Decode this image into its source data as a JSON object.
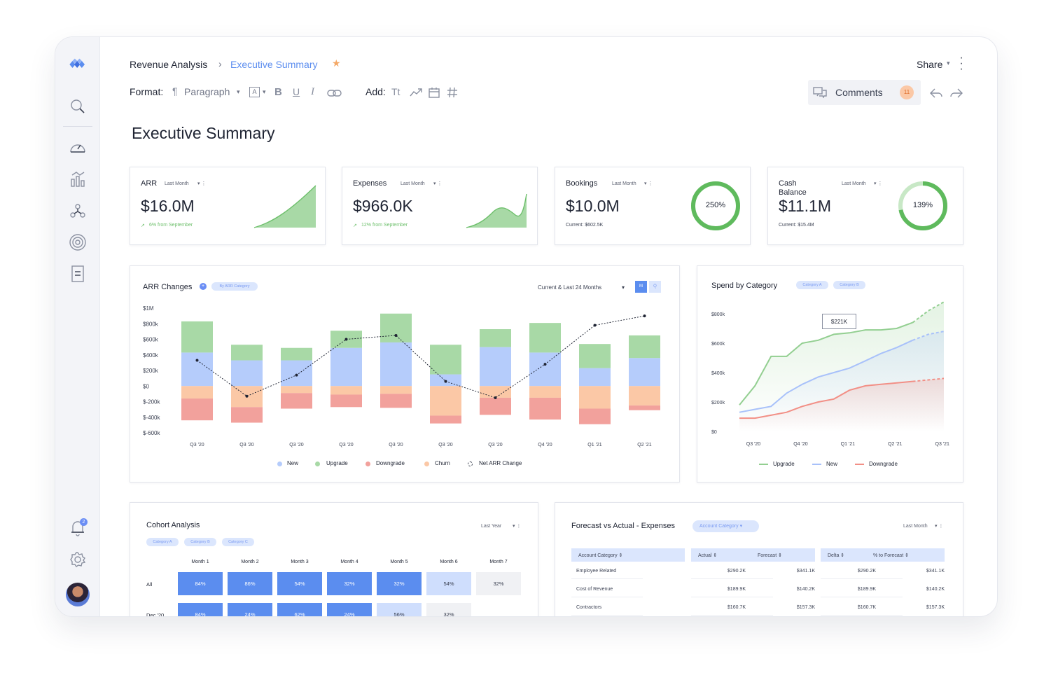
{
  "breadcrumb": {
    "parent": "Revenue Analysis",
    "current": "Executive Summary"
  },
  "header": {
    "share_label": "Share",
    "comments_label": "Comments",
    "comments_count": "11"
  },
  "toolbar": {
    "format_label": "Format:",
    "paragraph_label": "Paragraph",
    "add_label": "Add:",
    "text_tool": "Tt",
    "font_icon_label": "A",
    "bold": "B",
    "underline": "U",
    "italic": "I"
  },
  "page": {
    "title": "Executive Summary"
  },
  "kpis": [
    {
      "title": "ARR",
      "period": "Last Month",
      "value": "$16.0M",
      "note": "6% from September"
    },
    {
      "title": "Expenses",
      "period": "Last Month",
      "value": "$966.0K",
      "note": "12% from September"
    },
    {
      "title": "Bookings",
      "period": "Last Month",
      "value": "$10.0M",
      "note": "Current: $602.5K",
      "ring_label": "250%",
      "ring_fill": 1.0
    },
    {
      "title": "Cash Balance",
      "period": "Last Month",
      "value": "$11.1M",
      "note": "Current: $15.4M",
      "ring_label": "139%",
      "ring_fill": 0.72
    }
  ],
  "arr_chart": {
    "title": "ARR Changes",
    "chip": "By ARR Category",
    "range_label": "Current & Last 24 Months",
    "toggle": [
      "M",
      "Q"
    ],
    "legend": [
      "New",
      "Upgrade",
      "Downgrade",
      "Churn",
      "Net ARR Change"
    ]
  },
  "spend_chart": {
    "title": "Spend by Category",
    "chips": [
      "Category A",
      "Category B"
    ],
    "tooltip": "$221K",
    "legend": [
      "Upgrade",
      "New",
      "Downgrade"
    ]
  },
  "cohort": {
    "title": "Cohort Analysis",
    "period": "Last Year",
    "chips": [
      "Category A",
      "Category B",
      "Category C"
    ],
    "columns": [
      "Month 1",
      "Month 2",
      "Month 3",
      "Month 4",
      "Month 5",
      "Month 6",
      "Month 7"
    ],
    "rows": [
      {
        "label": "All",
        "cells": [
          "84%",
          "86%",
          "54%",
          "32%",
          "32%",
          "54%",
          "32%"
        ]
      },
      {
        "label": "Dec '20",
        "cells": [
          "84%",
          "24%",
          "62%",
          "24%",
          "56%",
          "32%"
        ]
      }
    ]
  },
  "forecast": {
    "title": "Forecast vs Actual - Expenses",
    "chip": "Account Category",
    "period": "Last Month",
    "headers": [
      "Account Category",
      "Actual",
      "Forecast",
      "Delta",
      "% to Forecast"
    ],
    "rows": [
      {
        "cat": "Employee Related",
        "actual": "$290.2K",
        "forecast": "$341.1K",
        "delta": "$290.2K",
        "pct": "$341.1K"
      },
      {
        "cat": "Cost of Revenue",
        "actual": "$189.9K",
        "forecast": "$140.2K",
        "delta": "$189.9K",
        "pct": "$140.2K"
      },
      {
        "cat": "Contractors",
        "actual": "$160.7K",
        "forecast": "$157.3K",
        "delta": "$160.7K",
        "pct": "$157.3K"
      }
    ]
  },
  "chart_data": [
    {
      "type": "bar",
      "title": "ARR Changes",
      "categories": [
        "Q3 '20",
        "Q3 '20",
        "Q3 '20",
        "Q3 '20",
        "Q3 '20",
        "Q3 '20",
        "Q3 '20",
        "Q4 '20",
        "Q1 '21",
        "Q2 '21"
      ],
      "y_ticks": [
        "$1M",
        "$800k",
        "$600k",
        "$400k",
        "$200k",
        "$0",
        "$-200k",
        "$-400k",
        "$-600k"
      ],
      "ylim": [
        -600000,
        1000000
      ],
      "stacked": true,
      "series": [
        {
          "name": "New",
          "color": "#b5ccfb",
          "values": [
            430000,
            330000,
            330000,
            490000,
            560000,
            150000,
            500000,
            430000,
            230000,
            360000
          ]
        },
        {
          "name": "Upgrade",
          "color": "#a8d9a6",
          "values": [
            400000,
            200000,
            160000,
            220000,
            370000,
            380000,
            230000,
            380000,
            310000,
            290000
          ]
        },
        {
          "name": "Downgrade",
          "color": "#f2a19c",
          "values": [
            -280000,
            -200000,
            -200000,
            -160000,
            -180000,
            -100000,
            -220000,
            -280000,
            -200000,
            -60000
          ]
        },
        {
          "name": "Churn",
          "color": "#fbc8a6",
          "values": [
            -160000,
            -270000,
            -90000,
            -110000,
            -100000,
            -380000,
            -150000,
            -150000,
            -290000,
            -250000
          ]
        },
        {
          "name": "Net ARR Change",
          "type": "line",
          "values": [
            330000,
            -130000,
            140000,
            600000,
            650000,
            60000,
            -150000,
            280000,
            780000,
            900000
          ]
        }
      ],
      "legend_position": "bottom"
    },
    {
      "type": "line",
      "title": "Spend by Category",
      "x_ticks": [
        "Q3 '20",
        "Q4 '20",
        "Q1 '21",
        "Q2 '21",
        "Q3 '21"
      ],
      "y_ticks": [
        "$800k",
        "$600k",
        "$400k",
        "$200k",
        "$0"
      ],
      "ylim": [
        0,
        800000
      ],
      "x": [
        0,
        0.33,
        0.67,
        1,
        1.33,
        1.67,
        2,
        2.33,
        2.67,
        3,
        3.33,
        3.67,
        4,
        4.33
      ],
      "series": [
        {
          "name": "Upgrade",
          "color": "#93cf91",
          "values": [
            180000,
            310000,
            510000,
            510000,
            600000,
            620000,
            660000,
            670000,
            690000,
            690000,
            700000,
            740000,
            820000,
            880000
          ],
          "projected_from": 3.67
        },
        {
          "name": "New",
          "color": "#a8c1fa",
          "values": [
            130000,
            150000,
            170000,
            260000,
            320000,
            370000,
            400000,
            430000,
            480000,
            530000,
            570000,
            620000,
            660000,
            680000
          ],
          "projected_from": 3.67
        },
        {
          "name": "Downgrade",
          "color": "#f28f86",
          "values": [
            90000,
            90000,
            110000,
            130000,
            170000,
            200000,
            220000,
            280000,
            310000,
            320000,
            330000,
            340000,
            350000,
            360000
          ],
          "projected_from": 3.67
        }
      ],
      "annotation": "$221K",
      "legend_position": "bottom"
    }
  ]
}
